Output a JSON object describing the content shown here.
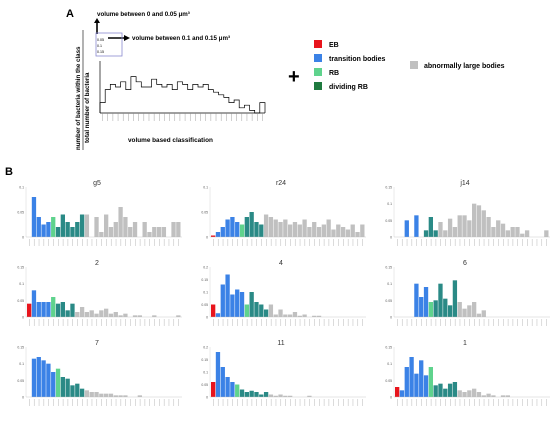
{
  "panel_a": {
    "label": "A",
    "annot_top": "volume between 0 and 0.05 μm³",
    "annot_mid": "volume between 0.1 and 0.15 μm³",
    "ylabel_top": "number of bacteria within the class",
    "ylabel_bottom": "total number of bacteria",
    "xlabel": "volume based classification",
    "inset_labels": [
      "0.05",
      "0.1",
      "0.15"
    ],
    "plus": "+"
  },
  "legend": {
    "items": [
      {
        "label": "EB",
        "color": "#e8141c"
      },
      {
        "label": "transition bodies",
        "color": "#3b82e6"
      },
      {
        "label": "RB",
        "color": "#5fd38d"
      },
      {
        "label": "dividing RB",
        "color": "#1f7a3f"
      }
    ],
    "extra": {
      "label": "abnormally large bodies",
      "color": "#c0c0c0"
    }
  },
  "panel_b_label": "B",
  "colors": {
    "EB": "#e8141c",
    "transition": "#3b82e6",
    "RB": "#5fd38d",
    "dividing": "#2a8a86",
    "large": "#c0c0c0"
  },
  "chart_data": [
    {
      "type": "bar",
      "title": "g5",
      "ylim": [
        0,
        0.1
      ],
      "yticks": [
        "0.1",
        "0.05",
        "0"
      ],
      "values": [
        0,
        0.08,
        0.04,
        0.025,
        0.03,
        0.04,
        0.02,
        0.045,
        0.03,
        0.02,
        0.03,
        0.045,
        0.045,
        0,
        0.04,
        0.01,
        0.045,
        0.02,
        0.03,
        0.06,
        0.04,
        0.02,
        0.03,
        0,
        0.03,
        0.01,
        0.02,
        0.02,
        0.02,
        0,
        0.03,
        0.03
      ],
      "classes": [
        "transition",
        "transition",
        "transition",
        "transition",
        "transition",
        "RB",
        "dividing",
        "dividing",
        "dividing",
        "dividing",
        "dividing",
        "dividing",
        "large",
        "large",
        "large",
        "large",
        "large",
        "large",
        "large",
        "large",
        "large",
        "large",
        "large",
        "large",
        "large",
        "large",
        "large",
        "large",
        "large",
        "large",
        "large",
        "large"
      ]
    },
    {
      "type": "bar",
      "title": "r24",
      "ylim": [
        0,
        0.1
      ],
      "yticks": [
        "0.1",
        "0.05",
        "0"
      ],
      "values": [
        0.003,
        0.01,
        0.02,
        0.035,
        0.04,
        0.03,
        0.025,
        0.04,
        0.05,
        0.03,
        0.025,
        0.045,
        0.04,
        0.035,
        0.03,
        0.035,
        0.025,
        0.03,
        0.025,
        0.035,
        0.02,
        0.03,
        0.02,
        0.025,
        0.035,
        0.015,
        0.025,
        0.02,
        0.015,
        0.025,
        0.01,
        0.025
      ],
      "classes": [
        "EB",
        "transition",
        "transition",
        "transition",
        "transition",
        "transition",
        "RB",
        "dividing",
        "dividing",
        "dividing",
        "dividing",
        "large",
        "large",
        "large",
        "large",
        "large",
        "large",
        "large",
        "large",
        "large",
        "large",
        "large",
        "large",
        "large",
        "large",
        "large",
        "large",
        "large",
        "large",
        "large",
        "large",
        "large"
      ]
    },
    {
      "type": "bar",
      "title": "j14",
      "ylim": [
        0,
        0.15
      ],
      "yticks": [
        "0.15",
        "0.1",
        "0.05",
        "0"
      ],
      "values": [
        0,
        0,
        0.05,
        0,
        0.065,
        0,
        0.02,
        0.06,
        0.02,
        0.045,
        0.02,
        0.055,
        0.03,
        0.065,
        0.065,
        0.05,
        0.1,
        0.095,
        0.08,
        0.06,
        0.03,
        0.05,
        0.04,
        0.02,
        0.03,
        0.03,
        0.01,
        0.02,
        0,
        0,
        0,
        0.02
      ],
      "classes": [
        "transition",
        "transition",
        "transition",
        "transition",
        "transition",
        "RB",
        "dividing",
        "dividing",
        "dividing",
        "large",
        "large",
        "large",
        "large",
        "large",
        "large",
        "large",
        "large",
        "large",
        "large",
        "large",
        "large",
        "large",
        "large",
        "large",
        "large",
        "large",
        "large",
        "large",
        "large",
        "large",
        "large",
        "large"
      ]
    },
    {
      "type": "bar",
      "title": "2",
      "ylim": [
        0,
        0.15
      ],
      "yticks": [
        "0.15",
        "0.1",
        "0.05",
        "0"
      ],
      "values": [
        0.04,
        0.08,
        0.045,
        0.045,
        0.045,
        0.06,
        0.04,
        0.045,
        0.02,
        0.04,
        0.015,
        0.03,
        0.015,
        0.02,
        0.01,
        0.02,
        0.025,
        0.01,
        0.015,
        0.005,
        0.01,
        0,
        0.005,
        0.005,
        0,
        0,
        0.005,
        0,
        0,
        0,
        0,
        0.005
      ],
      "classes": [
        "EB",
        "transition",
        "transition",
        "transition",
        "transition",
        "RB",
        "dividing",
        "dividing",
        "dividing",
        "dividing",
        "large",
        "large",
        "large",
        "large",
        "large",
        "large",
        "large",
        "large",
        "large",
        "large",
        "large",
        "large",
        "large",
        "large",
        "large",
        "large",
        "large",
        "large",
        "large",
        "large",
        "large",
        "large"
      ]
    },
    {
      "type": "bar",
      "title": "4",
      "ylim": [
        0,
        0.2
      ],
      "yticks": [
        "0.2",
        "0.15",
        "0.1",
        "0.05",
        "0"
      ],
      "values": [
        0.05,
        0.015,
        0.13,
        0.17,
        0.09,
        0.11,
        0.1,
        0.05,
        0.1,
        0.06,
        0.05,
        0.03,
        0.05,
        0.01,
        0.03,
        0.01,
        0.01,
        0.02,
        0.005,
        0.01,
        0,
        0.005,
        0.005,
        0,
        0,
        0,
        0,
        0,
        0,
        0,
        0,
        0
      ],
      "classes": [
        "EB",
        "transition",
        "transition",
        "transition",
        "transition",
        "transition",
        "transition",
        "RB",
        "dividing",
        "dividing",
        "dividing",
        "dividing",
        "large",
        "large",
        "large",
        "large",
        "large",
        "large",
        "large",
        "large",
        "large",
        "large",
        "large",
        "large",
        "large",
        "large",
        "large",
        "large",
        "large",
        "large",
        "large",
        "large"
      ]
    },
    {
      "type": "bar",
      "title": "6",
      "ylim": [
        0,
        0.15
      ],
      "yticks": [
        "0.15",
        "0.1",
        "0.05",
        "0"
      ],
      "values": [
        0,
        0,
        0,
        0,
        0.1,
        0.06,
        0.09,
        0.045,
        0.05,
        0.1,
        0.055,
        0.035,
        0.11,
        0.045,
        0.025,
        0.035,
        0.045,
        0.01,
        0.02,
        0,
        0,
        0,
        0,
        0,
        0,
        0,
        0,
        0,
        0,
        0,
        0,
        0
      ],
      "classes": [
        "transition",
        "transition",
        "transition",
        "transition",
        "transition",
        "transition",
        "transition",
        "RB",
        "dividing",
        "dividing",
        "dividing",
        "dividing",
        "dividing",
        "large",
        "large",
        "large",
        "large",
        "large",
        "large",
        "large",
        "large",
        "large",
        "large",
        "large",
        "large",
        "large",
        "large",
        "large",
        "large",
        "large",
        "large",
        "large"
      ]
    },
    {
      "type": "bar",
      "title": "7",
      "ylim": [
        0,
        0.15
      ],
      "yticks": [
        "0.15",
        "0.1",
        "0.05",
        "0"
      ],
      "values": [
        0,
        0.115,
        0.12,
        0.11,
        0.1,
        0.075,
        0.085,
        0.06,
        0.055,
        0.035,
        0.04,
        0.025,
        0.02,
        0.015,
        0.015,
        0.01,
        0.01,
        0.01,
        0.005,
        0.005,
        0.005,
        0,
        0,
        0.005,
        0,
        0,
        0,
        0,
        0,
        0,
        0,
        0
      ],
      "classes": [
        "transition",
        "transition",
        "transition",
        "transition",
        "transition",
        "transition",
        "RB",
        "dividing",
        "dividing",
        "dividing",
        "dividing",
        "dividing",
        "large",
        "large",
        "large",
        "large",
        "large",
        "large",
        "large",
        "large",
        "large",
        "large",
        "large",
        "large",
        "large",
        "large",
        "large",
        "large",
        "large",
        "large",
        "large",
        "large"
      ]
    },
    {
      "type": "bar",
      "title": "11",
      "ylim": [
        0,
        0.2
      ],
      "yticks": [
        "0.2",
        "0.15",
        "0.1",
        "0.05",
        "0"
      ],
      "values": [
        0.06,
        0.18,
        0.12,
        0.08,
        0.06,
        0.05,
        0.03,
        0.02,
        0.025,
        0.02,
        0.01,
        0.02,
        0.01,
        0.005,
        0.01,
        0.005,
        0.005,
        0,
        0,
        0,
        0.005,
        0,
        0,
        0,
        0,
        0,
        0,
        0,
        0,
        0,
        0,
        0
      ],
      "classes": [
        "EB",
        "transition",
        "transition",
        "transition",
        "transition",
        "RB",
        "dividing",
        "dividing",
        "dividing",
        "dividing",
        "dividing",
        "dividing",
        "large",
        "large",
        "large",
        "large",
        "large",
        "large",
        "large",
        "large",
        "large",
        "large",
        "large",
        "large",
        "large",
        "large",
        "large",
        "large",
        "large",
        "large",
        "large",
        "large"
      ]
    },
    {
      "type": "bar",
      "title": "1",
      "ylim": [
        0,
        0.15
      ],
      "yticks": [
        "0.15",
        "0.1",
        "0.05",
        "0"
      ],
      "values": [
        0.03,
        0.02,
        0.09,
        0.12,
        0.07,
        0.11,
        0.065,
        0.09,
        0.035,
        0.04,
        0.025,
        0.04,
        0.045,
        0.02,
        0.015,
        0.02,
        0.025,
        0.015,
        0.005,
        0.01,
        0.005,
        0,
        0.005,
        0.005,
        0,
        0,
        0,
        0,
        0,
        0,
        0,
        0
      ],
      "classes": [
        "EB",
        "transition",
        "transition",
        "transition",
        "transition",
        "transition",
        "transition",
        "RB",
        "dividing",
        "dividing",
        "dividing",
        "dividing",
        "dividing",
        "large",
        "large",
        "large",
        "large",
        "large",
        "large",
        "large",
        "large",
        "large",
        "large",
        "large",
        "large",
        "large",
        "large",
        "large",
        "large",
        "large",
        "large",
        "large"
      ]
    }
  ]
}
